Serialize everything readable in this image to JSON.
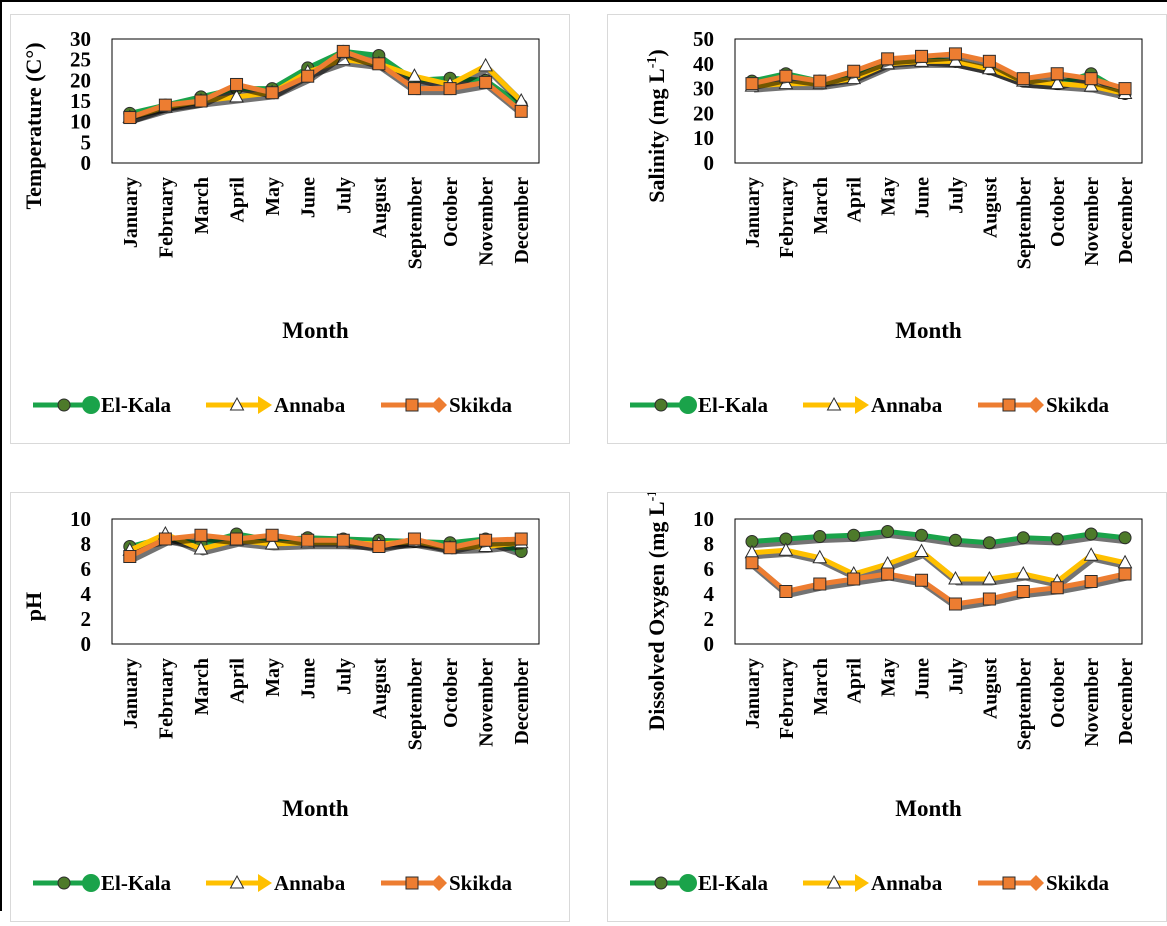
{
  "legend": [
    {
      "name": "El-Kala",
      "color": "#1aa34a",
      "marker": "circle"
    },
    {
      "name": "Annaba",
      "color": "#ffc000",
      "marker": "triangle"
    },
    {
      "name": "Skikda",
      "color": "#ed7d31",
      "marker": "square"
    }
  ],
  "chart_data": [
    {
      "type": "line",
      "ylabel": "Temperature (C°)",
      "ylabel_sup": "",
      "ylabel_after": "",
      "xlabel": "Month",
      "ylim": [
        0,
        30
      ],
      "yticks": [
        0,
        5,
        10,
        15,
        20,
        25,
        30
      ],
      "categories": [
        "January",
        "February",
        "March",
        "April",
        "May",
        "June",
        "July",
        "August",
        "September",
        "October",
        "November",
        "December"
      ],
      "series": [
        {
          "name": "El-Kala",
          "values": [
            12,
            14,
            16,
            18,
            18,
            23,
            27,
            26,
            20,
            20.5,
            20,
            14
          ]
        },
        {
          "name": "Annaba",
          "values": [
            11,
            13.5,
            15,
            16,
            17,
            22,
            25,
            24,
            21,
            19,
            23.5,
            15
          ]
        },
        {
          "name": "Skikda",
          "values": [
            11,
            14,
            15,
            19,
            17,
            21,
            27,
            24,
            18,
            18,
            19.5,
            12.5
          ]
        }
      ]
    },
    {
      "type": "line",
      "ylabel": "Salinity (mg L",
      "ylabel_sup": "-1",
      "ylabel_after": ")",
      "xlabel": "Month",
      "ylim": [
        0,
        50
      ],
      "yticks": [
        0,
        10,
        20,
        30,
        40,
        50
      ],
      "categories": [
        "January",
        "February",
        "March",
        "April",
        "May",
        "June",
        "July",
        "August",
        "September",
        "October",
        "November",
        "December"
      ],
      "series": [
        {
          "name": "El-Kala",
          "values": [
            33,
            36,
            33,
            35,
            41,
            42,
            41,
            38,
            33,
            32,
            36,
            28
          ]
        },
        {
          "name": "Annaba",
          "values": [
            31,
            32,
            32,
            34,
            40,
            41,
            41,
            38,
            33,
            32,
            31,
            28
          ]
        },
        {
          "name": "Skikda",
          "values": [
            32,
            35,
            33,
            37,
            42,
            43,
            44,
            41,
            34,
            36,
            34,
            30
          ]
        }
      ]
    },
    {
      "type": "line",
      "ylabel": "pH",
      "ylabel_sup": "",
      "ylabel_after": "",
      "xlabel": "Month",
      "ylim": [
        0,
        10
      ],
      "yticks": [
        0,
        2,
        4,
        6,
        8,
        10
      ],
      "categories": [
        "January",
        "February",
        "March",
        "April",
        "May",
        "June",
        "July",
        "August",
        "September",
        "October",
        "November",
        "December"
      ],
      "series": [
        {
          "name": "El-Kala",
          "values": [
            7.8,
            8.5,
            8.0,
            8.8,
            8.3,
            8.5,
            8.4,
            8.3,
            8.2,
            8.1,
            8.4,
            7.4
          ]
        },
        {
          "name": "Annaba",
          "values": [
            7.5,
            8.8,
            7.6,
            8.3,
            8.0,
            8.1,
            8.1,
            8.0,
            8.2,
            7.7,
            7.8,
            8.1
          ]
        },
        {
          "name": "Skikda",
          "values": [
            7.0,
            8.4,
            8.7,
            8.4,
            8.7,
            8.3,
            8.3,
            7.8,
            8.4,
            7.7,
            8.3,
            8.4
          ]
        }
      ]
    },
    {
      "type": "line",
      "ylabel": "Dissolved Oxygen (mg L",
      "ylabel_sup": "-1",
      "ylabel_after": ")",
      "xlabel": "Month",
      "ylim": [
        0,
        10
      ],
      "yticks": [
        0,
        2,
        4,
        6,
        8,
        10
      ],
      "categories": [
        "January",
        "February",
        "March",
        "April",
        "May",
        "June",
        "July",
        "August",
        "September",
        "October",
        "November",
        "December"
      ],
      "series": [
        {
          "name": "El-Kala",
          "values": [
            8.2,
            8.4,
            8.6,
            8.7,
            9.0,
            8.7,
            8.3,
            8.1,
            8.5,
            8.4,
            8.8,
            8.5
          ]
        },
        {
          "name": "Annaba",
          "values": [
            7.3,
            7.5,
            6.9,
            5.6,
            6.4,
            7.4,
            5.2,
            5.2,
            5.6,
            5.0,
            7.1,
            6.5
          ]
        },
        {
          "name": "Skikda",
          "values": [
            6.5,
            4.2,
            4.8,
            5.2,
            5.6,
            5.1,
            3.2,
            3.6,
            4.2,
            4.5,
            5.0,
            5.6
          ]
        }
      ]
    }
  ]
}
